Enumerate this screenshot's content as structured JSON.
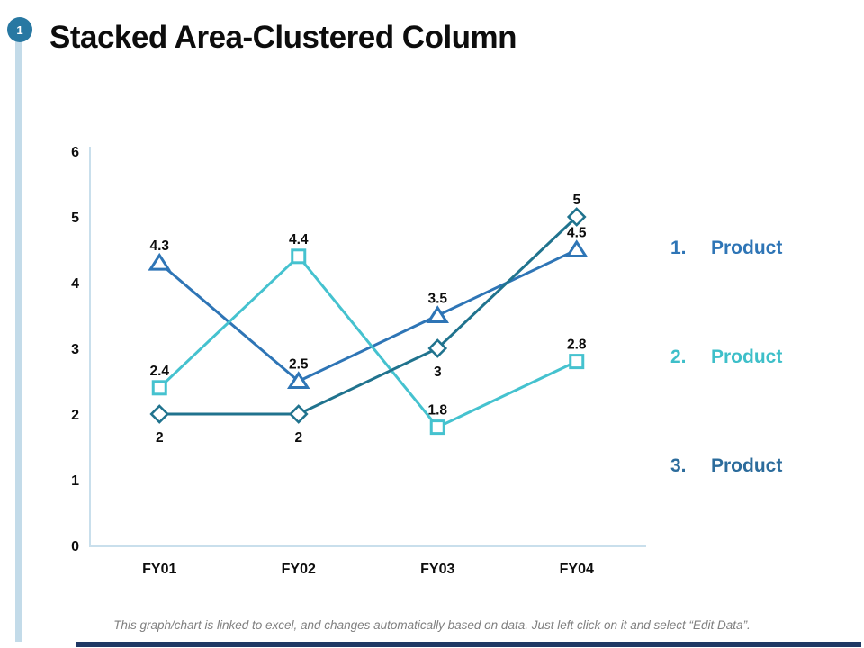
{
  "slide": {
    "badge": "1",
    "title": "Stacked Area-Clustered Column",
    "footer": "This graph/chart is linked to excel, and changes automatically based on data. Just left click on it and select “Edit Data”."
  },
  "colors": {
    "badge": "#2878A2",
    "stripe": "#C3DBE9",
    "bottom_bar": "#1F3864",
    "axis": "#C9DFEC",
    "text": "#0D0D0D",
    "footer_text": "#7F7F7F"
  },
  "legend": {
    "items": [
      {
        "number": "1.",
        "label": "Product",
        "color": "#2E75B6"
      },
      {
        "number": "2.",
        "label": "Product",
        "color": "#3EBFC9"
      },
      {
        "number": "3.",
        "label": "Product",
        "color": "#2C6C9C"
      }
    ]
  },
  "chart_data": {
    "type": "line",
    "title": "",
    "xlabel": "",
    "ylabel": "",
    "categories": [
      "FY01",
      "FY02",
      "FY03",
      "FY04"
    ],
    "series": [
      {
        "name": "Product 1",
        "marker": "triangle",
        "color": "#2E75B6",
        "values": [
          4.3,
          2.5,
          3.5,
          4.5
        ],
        "labels": [
          "4.3",
          "2.5",
          "3.5",
          "4.5"
        ],
        "label_pos": [
          "above",
          "above",
          "above",
          "above"
        ]
      },
      {
        "name": "Product 2",
        "marker": "square",
        "color": "#45C2CF",
        "values": [
          2.4,
          4.4,
          1.8,
          2.8
        ],
        "labels": [
          "2.4",
          "4.4",
          "1.8",
          "2.8"
        ],
        "label_pos": [
          "above",
          "above",
          "above",
          "above"
        ]
      },
      {
        "name": "Product 3",
        "marker": "diamond",
        "color": "#20738E",
        "values": [
          2,
          2,
          3,
          5
        ],
        "labels": [
          "2",
          "2",
          "3",
          "5"
        ],
        "label_pos": [
          "below",
          "below",
          "below",
          "above"
        ]
      }
    ],
    "ylim": [
      0,
      6
    ],
    "yticks": [
      0,
      1,
      2,
      3,
      4,
      5,
      6
    ],
    "grid": false,
    "legend_position": "right"
  }
}
